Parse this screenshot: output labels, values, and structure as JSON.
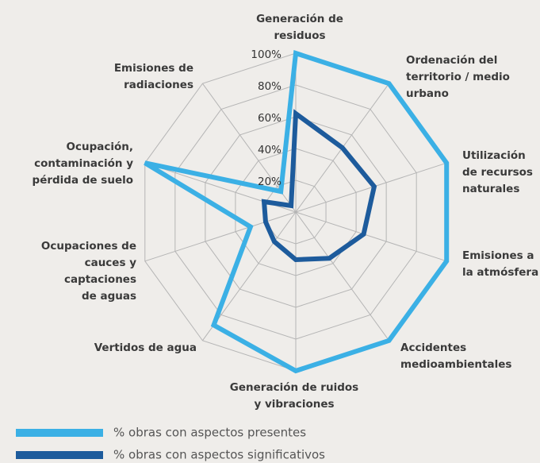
{
  "chart_data": {
    "type": "radar",
    "categories": [
      "Generación de\nresiduos",
      "Ordenación del\nterritorio / medio\nurbano",
      "Utilización\nde recursos\nnaturales",
      "Emisiones a\nla atmósfera",
      "Accidentes\nmedioambientales",
      "Generación de ruidos\ny vibraciones",
      "Vertidos de agua",
      "Ocupaciones de\ncauces y\ncaptaciones\nde aguas",
      "Ocupación,\ncontaminación y\npérdida de suelo",
      "Emisiones de\nradiaciones"
    ],
    "series": [
      {
        "name": "% obras con aspectos presentes",
        "color": "#3bb0e5",
        "values": [
          100,
          100,
          100,
          100,
          100,
          100,
          88,
          30,
          100,
          16
        ]
      },
      {
        "name": "% obras con aspectos significativos",
        "color": "#1d5b9c",
        "values": [
          62,
          50,
          52,
          45,
          36,
          30,
          23,
          20,
          21,
          5
        ]
      }
    ],
    "ylim": [
      0,
      100
    ],
    "yticks": [
      {
        "value": 20,
        "label": "20%"
      },
      {
        "value": 40,
        "label": "40%"
      },
      {
        "value": 60,
        "label": "60%"
      },
      {
        "value": 80,
        "label": "80%"
      },
      {
        "value": 100,
        "label": "100%"
      }
    ],
    "grid": true
  }
}
